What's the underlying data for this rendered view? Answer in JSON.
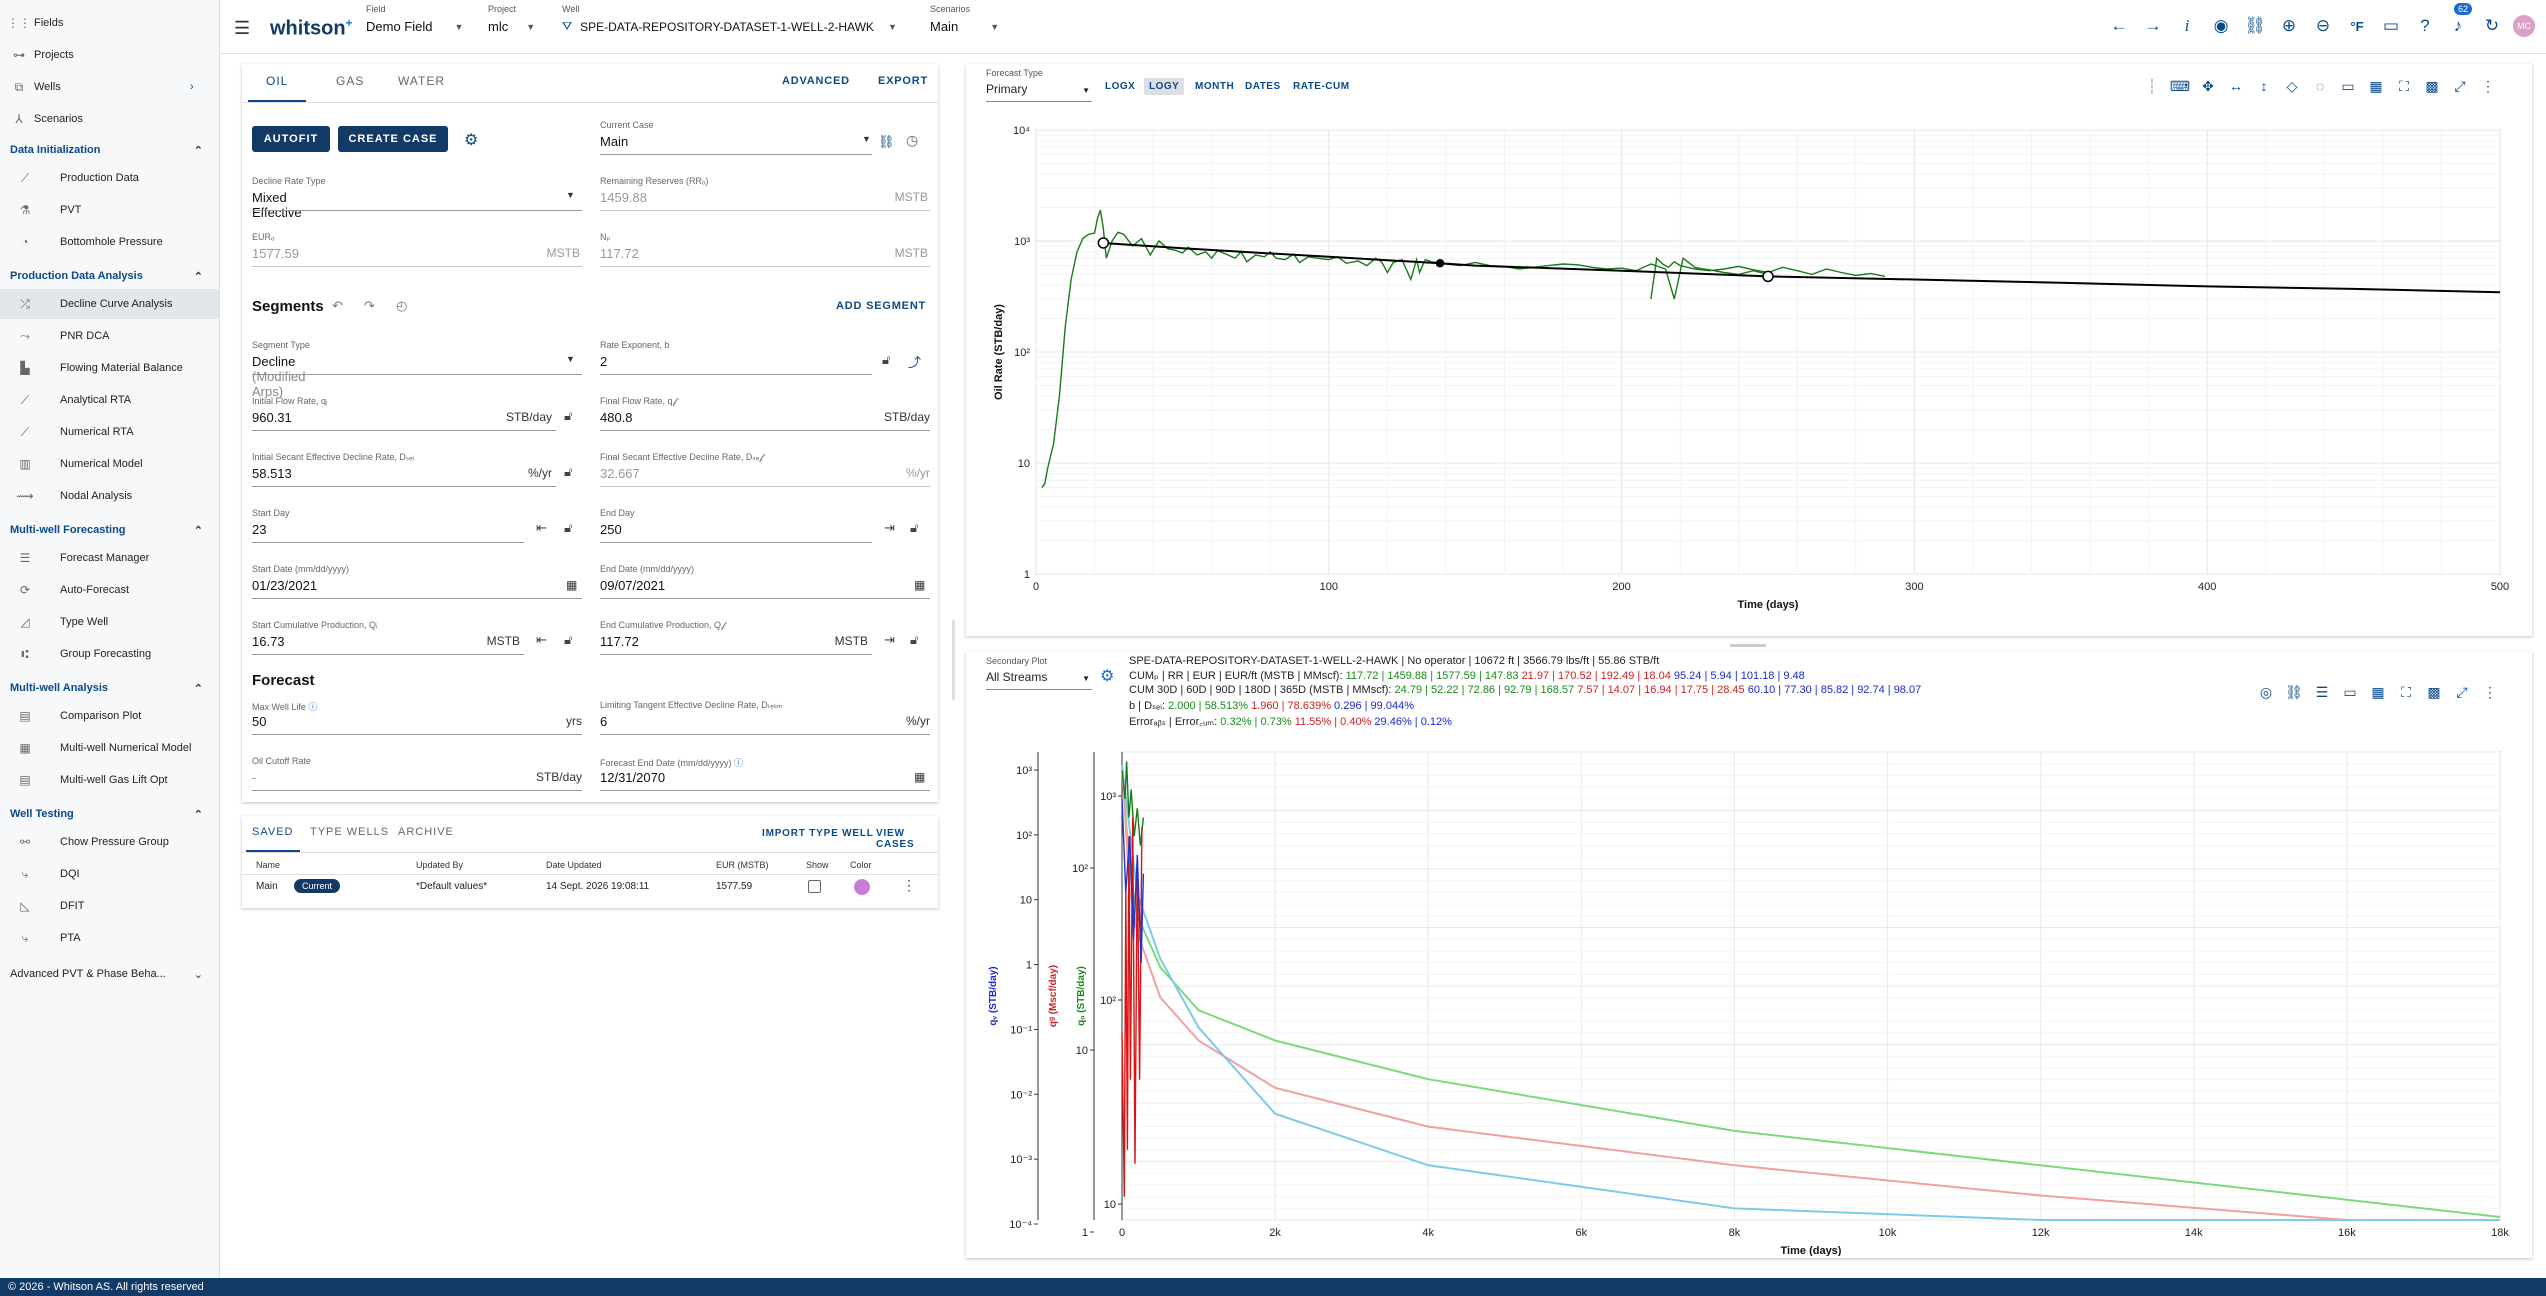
{
  "sidebar": {
    "top_items": [
      {
        "label": "Fields",
        "icon": "grid-icon"
      },
      {
        "label": "Projects",
        "icon": "nodes-icon"
      },
      {
        "label": "Wells",
        "icon": "well-icon"
      },
      {
        "label": "Scenarios",
        "icon": "scenarios-icon"
      }
    ],
    "sections": [
      {
        "title": "Data Initialization",
        "items": [
          "Production Data",
          "PVT",
          "Bottomhole Pressure"
        ]
      },
      {
        "title": "Production Data Analysis",
        "items": [
          "Decline Curve Analysis",
          "PNR DCA",
          "Flowing Material Balance",
          "Analytical RTA",
          "Numerical RTA",
          "Numerical Model",
          "Nodal Analysis"
        ]
      },
      {
        "title": "Multi-well Forecasting",
        "items": [
          "Forecast Manager",
          "Auto-Forecast",
          "Type Well",
          "Group Forecasting"
        ]
      },
      {
        "title": "Multi-well Analysis",
        "items": [
          "Comparison Plot",
          "Multi-well Numerical Model",
          "Multi-well Gas Lift Opt"
        ]
      },
      {
        "title": "Well Testing",
        "items": [
          "Chow Pressure Group",
          "DQI",
          "DFIT",
          "PTA"
        ]
      }
    ],
    "bottom_section": "Advanced PVT & Phase Beha..."
  },
  "topbar": {
    "logo": "whitson",
    "logo_sup": "+",
    "field_cap": "Field",
    "field_val": "Demo Field",
    "project_cap": "Project",
    "project_val": "mlc",
    "well_cap": "Well",
    "well_val": "SPE-DATA-REPOSITORY-DATASET-1-WELL-2-HAWK",
    "scen_cap": "Scenarios",
    "scen_val": "Main",
    "badge": "62",
    "avatar": "MC",
    "unit_icon_label": "°F"
  },
  "left": {
    "tabs": [
      "OIL",
      "GAS",
      "WATER"
    ],
    "advanced": "ADVANCED",
    "export": "EXPORT",
    "autofit": "AUTOFIT",
    "create_case": "CREATE CASE",
    "current_case_cap": "Current Case",
    "current_case_val": "Main",
    "decline_type_cap": "Decline Rate Type",
    "decline_type_val": "Mixed Effective",
    "remaining_cap": "Remaining Reserves (RRₒ)",
    "remaining_val": "1459.88",
    "remaining_unit": "MSTB",
    "eur_cap": "EURₒ",
    "eur_val": "1577.59",
    "eur_unit": "MSTB",
    "np_cap": "Nₚ",
    "np_val": "117.72",
    "np_unit": "MSTB",
    "segments_title": "Segments",
    "add_segment": "ADD SEGMENT",
    "seg_type_cap": "Segment Type",
    "seg_type_val": "Decline",
    "seg_type_sub": "(Modified Arps)",
    "rate_exp_cap": "Rate Exponent, b",
    "rate_exp_val": "2",
    "qi_cap": "Initial Flow Rate, qᵢ",
    "qi_val": "960.31",
    "qi_unit": "STB/day",
    "qf_cap": "Final Flow Rate, q𝒻",
    "qf_val": "480.8",
    "qf_unit": "STB/day",
    "dsei_cap": "Initial Secant Effective Decline Rate, Dₛₑᵢ",
    "dsei_val": "58.513",
    "dsei_unit": "%/yr",
    "dsef_cap": "Final Secant Effective Decline Rate, Dₛₑ𝒻",
    "dsef_val": "32.667",
    "dsef_unit": "%/yr",
    "start_day_cap": "Start Day",
    "start_day_val": "23",
    "end_day_cap": "End Day",
    "end_day_val": "250",
    "start_date_cap": "Start Date (mm/dd/yyyy)",
    "start_date_val": "01/23/2021",
    "end_date_cap": "End Date (mm/dd/yyyy)",
    "end_date_val": "09/07/2021",
    "start_cum_cap": "Start Cumulative Production, Qᵢ",
    "start_cum_val": "16.73",
    "start_cum_unit": "MSTB",
    "end_cum_cap": "End Cumulative Production, Q𝒻",
    "end_cum_val": "117.72",
    "end_cum_unit": "MSTB",
    "forecast_title": "Forecast",
    "max_life_cap": "Max Well Life",
    "max_life_val": "50",
    "max_life_unit": "yrs",
    "lim_tan_cap": "Limiting Tangent Effective Decline Rate, Dₜₑₗᵢₘ",
    "lim_tan_val": "6",
    "lim_tan_unit": "%/yr",
    "cutoff_cap": "Oil Cutoff Rate",
    "cutoff_val": "-",
    "cutoff_unit": "STB/day",
    "fend_cap": "Forecast End Date (mm/dd/yyyy)",
    "fend_val": "12/31/2070"
  },
  "cases": {
    "tabs": [
      "SAVED",
      "TYPE WELLS",
      "ARCHIVE"
    ],
    "import": "IMPORT TYPE WELL",
    "view": "VIEW CASES",
    "headers": [
      "Name",
      "Updated By",
      "Date Updated",
      "EUR (MSTB)",
      "Show",
      "Color"
    ],
    "rows": [
      {
        "name": "Main",
        "badge": "Current",
        "updated_by": "*Default values*",
        "date": "14 Sept. 2026 19:08:11",
        "eur": "1577.59",
        "color": "#c77dd6"
      }
    ]
  },
  "top_plot": {
    "forecast_type_cap": "Forecast Type",
    "forecast_type_val": "Primary",
    "toggles": [
      "LOGX",
      "LOGY",
      "MONTH",
      "DATES",
      "RATE-CUM"
    ],
    "active_toggle": "LOGY"
  },
  "bottom_plot": {
    "secondary_cap": "Secondary Plot",
    "secondary_val": "All Streams",
    "well_line": "SPE-DATA-REPOSITORY-DATASET-1-WELL-2-HAWK | No operator | 10672 ft | 3566.79 lbs/ft | 55.86 STB/ft",
    "cum_label": "CUMₚ | RR | EUR | EUR/ft (MSTB | MMscf): ",
    "cum_g": "117.72 | 1459.88 | 1577.59 | 147.83",
    "cum_r": "21.97 | 170.52 | 192.49 | 18.04",
    "cum_b": "95.24 | 5.94 | 101.18 | 9.48",
    "cum30_label": "CUM 30D | 60D | 90D | 180D | 365D (MSTB | MMscf): ",
    "cum30_g": "24.79 | 52.22 | 72.86 | 92.79 | 168.57",
    "cum30_r": "7.57 | 14.07 | 16.94 | 17.75 | 28.45",
    "cum30_b": "60.10 | 77.30 | 85.82 | 92.74 | 98.07",
    "bd_label": "b | Dₛₑᵢ: ",
    "bd_g": "2.000 | 58.513%",
    "bd_r": "1.960 | 78.639%",
    "bd_b": "0.296 | 99.044%",
    "err_label": "Errorₐᵦₛ | Error꜀ᵤₘ: ",
    "err_g": "0.32% | 0.73%",
    "err_r": "11.55% | 0.40%",
    "err_b": "29.46% | 0.12%"
  },
  "footer": "© 2026 - Whitson AS. All rights reserved",
  "chart_data": [
    {
      "type": "line",
      "title": "",
      "xlabel": "Time (days)",
      "ylabel": "Oil Rate (STB/day)",
      "xlim": [
        0,
        500
      ],
      "ylim": [
        1,
        10000
      ],
      "log_y": true,
      "grid": true,
      "x_ticks": [
        "0",
        "100",
        "200",
        "300",
        "400",
        "500"
      ],
      "y_ticks": [
        "1",
        "10",
        "10²",
        "10³",
        "10⁴"
      ],
      "series": [
        {
          "color": "#1a7a1a",
          "x": [
            2,
            3,
            4,
            6,
            8,
            10,
            12,
            14,
            16,
            18,
            20,
            21,
            22,
            23,
            24,
            26,
            28,
            30,
            33,
            36,
            39,
            42,
            45,
            48,
            50,
            52,
            55,
            58,
            60,
            62,
            65,
            68,
            70,
            72,
            75,
            78,
            80,
            82,
            85,
            88,
            90,
            93,
            96,
            100,
            103,
            106,
            110,
            113,
            116,
            118,
            120,
            122,
            125,
            128,
            130,
            131,
            132,
            133,
            135,
            140,
            145,
            150,
            155,
            160,
            165,
            170,
            175,
            180,
            185,
            190,
            195,
            200,
            205,
            210,
            215,
            218,
            221,
            225,
            228,
            230,
            235,
            240,
            245,
            250
          ],
          "y": [
            6,
            6.5,
            9,
            15,
            40,
            170,
            450,
            800,
            1050,
            1150,
            1180,
            1600,
            1900,
            1300,
            700,
            1000,
            1200,
            1150,
            900,
            1050,
            750,
            1000,
            850,
            820,
            780,
            880,
            750,
            800,
            700,
            820,
            760,
            700,
            800,
            650,
            750,
            720,
            800,
            700,
            680,
            760,
            640,
            720,
            700,
            680,
            720,
            630,
            660,
            600,
            700,
            650,
            520,
            640,
            680,
            450,
            680,
            520,
            600,
            680,
            650,
            620,
            600,
            640,
            600,
            590,
            560,
            580,
            600,
            620,
            610,
            580,
            560,
            570,
            540,
            620,
            560,
            300,
            700,
            580,
            560,
            550,
            520,
            500,
            540,
            500
          ]
        },
        {
          "color": "#1a7a1a",
          "x": [
            210,
            212,
            214,
            216,
            218,
            220,
            225,
            230,
            235,
            240,
            245,
            250,
            255,
            260,
            265,
            270,
            275,
            280,
            285,
            290
          ],
          "y": [
            300,
            700,
            620,
            580,
            650,
            600,
            560,
            540,
            560,
            590,
            550,
            520,
            580,
            540,
            500,
            560,
            520,
            490,
            510,
            480
          ]
        },
        {
          "color": "#000000",
          "x": [
            23,
            50,
            100,
            138,
            150,
            200,
            250,
            300,
            350,
            400,
            450,
            500
          ],
          "y": [
            960,
            860,
            720,
            630,
            600,
            540,
            480,
            450,
            420,
            390,
            370,
            345
          ]
        }
      ],
      "points": [
        {
          "x": 23,
          "y": 960
        },
        {
          "x": 138,
          "y": 630
        },
        {
          "x": 250,
          "y": 480
        }
      ]
    },
    {
      "type": "line",
      "title": "",
      "xlabel": "Time (days)",
      "xlim": [
        0,
        18000
      ],
      "x_ticks": [
        "0",
        "2k",
        "4k",
        "6k",
        "8k",
        "10k",
        "12k",
        "14k",
        "16k",
        "18k"
      ],
      "y_axes": [
        {
          "label": "qᵥ (STB/day)",
          "color": "#1a2ad0",
          "ticks": [
            "10⁻⁴",
            "10⁻³",
            "10⁻²",
            "10⁻¹",
            "1",
            "10",
            "10²",
            "10³"
          ]
        },
        {
          "label": "qᵍ (Mscf/day)",
          "color": "#cc2222",
          "ticks": [
            "1",
            "10",
            "10²"
          ]
        },
        {
          "label": "qₒ (STB/day)",
          "color": "#1a8a1a",
          "ticks": [
            "10",
            "10²",
            "10³"
          ]
        }
      ],
      "series": [
        {
          "color": "#7ed87e",
          "x": [
            0,
            100,
            200,
            500,
            1000,
            2000,
            4000,
            8000,
            12000,
            16000,
            18000
          ],
          "y_norm": [
            0.97,
            0.72,
            0.62,
            0.5,
            0.4,
            0.33,
            0.24,
            0.12,
            0.04,
            -0.04,
            -0.08
          ]
        },
        {
          "color": "#f0a0a0",
          "x": [
            0,
            100,
            200,
            500,
            1000,
            2000,
            4000,
            8000,
            12000,
            16000,
            18000
          ],
          "y_norm": [
            0.97,
            0.68,
            0.58,
            0.43,
            0.33,
            0.22,
            0.13,
            0.04,
            -0.03,
            -0.1,
            -0.14
          ]
        },
        {
          "color": "#7ccbe8",
          "x": [
            0,
            100,
            200,
            500,
            1000,
            2000,
            4000,
            8000,
            12000,
            16000,
            18000
          ],
          "y_norm": [
            0.97,
            0.82,
            0.67,
            0.52,
            0.36,
            0.16,
            0.04,
            -0.06,
            -0.11,
            -0.14,
            -0.16
          ]
        }
      ]
    }
  ]
}
